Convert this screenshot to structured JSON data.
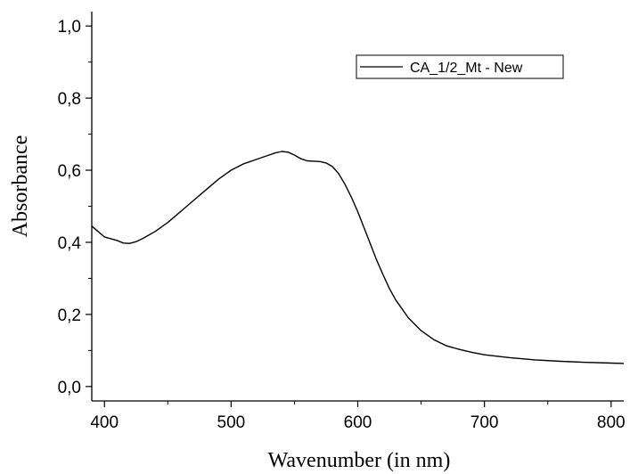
{
  "chart_data": {
    "type": "line",
    "title": "",
    "xlabel": "Wavenumber (in nm)",
    "ylabel": "Absorbance",
    "xlim": [
      390,
      810
    ],
    "ylim": [
      -0.04,
      1.04
    ],
    "grid": false,
    "legend_position": "top-right",
    "x_ticks": [
      {
        "value": 400,
        "label": "400"
      },
      {
        "value": 500,
        "label": "500"
      },
      {
        "value": 600,
        "label": "600"
      },
      {
        "value": 700,
        "label": "700"
      },
      {
        "value": 800,
        "label": "800"
      }
    ],
    "y_ticks": [
      {
        "value": 0.0,
        "label": "0,0"
      },
      {
        "value": 0.2,
        "label": "0,2"
      },
      {
        "value": 0.4,
        "label": "0,4"
      },
      {
        "value": 0.6,
        "label": "0,6"
      },
      {
        "value": 0.8,
        "label": "0,8"
      },
      {
        "value": 1.0,
        "label": "1,0"
      }
    ],
    "series": [
      {
        "name": "CA_1/2_Mt - New",
        "color": "#000000",
        "x": [
          390,
          395,
          400,
          405,
          410,
          415,
          420,
          425,
          430,
          440,
          450,
          460,
          470,
          480,
          490,
          500,
          510,
          520,
          530,
          535,
          540,
          545,
          550,
          555,
          560,
          565,
          570,
          575,
          580,
          585,
          590,
          595,
          600,
          605,
          610,
          615,
          620,
          625,
          630,
          640,
          650,
          660,
          670,
          680,
          690,
          700,
          720,
          740,
          760,
          780,
          800,
          810
        ],
        "y": [
          0.445,
          0.43,
          0.415,
          0.41,
          0.405,
          0.398,
          0.397,
          0.402,
          0.41,
          0.43,
          0.455,
          0.485,
          0.515,
          0.545,
          0.575,
          0.6,
          0.618,
          0.63,
          0.642,
          0.648,
          0.652,
          0.65,
          0.642,
          0.632,
          0.626,
          0.625,
          0.624,
          0.62,
          0.61,
          0.59,
          0.56,
          0.525,
          0.485,
          0.44,
          0.395,
          0.35,
          0.31,
          0.272,
          0.24,
          0.19,
          0.155,
          0.13,
          0.113,
          0.103,
          0.095,
          0.088,
          0.08,
          0.074,
          0.07,
          0.067,
          0.065,
          0.064
        ]
      }
    ]
  }
}
